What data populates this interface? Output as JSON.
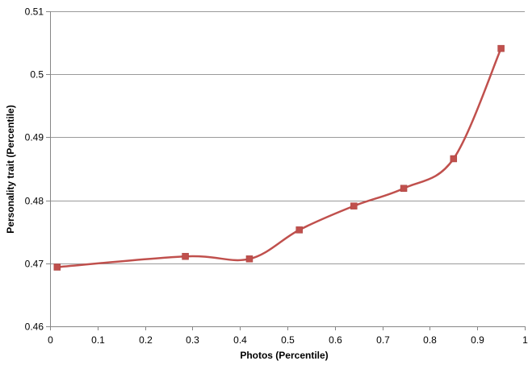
{
  "chart_data": {
    "type": "line",
    "title": "",
    "xlabel": "Photos (Percentile)",
    "ylabel": "Personality trait (Percentile)",
    "xlim": [
      0,
      1
    ],
    "ylim": [
      0.46,
      0.51
    ],
    "xticks": [
      "0",
      "0.1",
      "0.2",
      "0.3",
      "0.4",
      "0.5",
      "0.6",
      "0.7",
      "0.8",
      "0.9",
      "1"
    ],
    "yticks": [
      "0.46",
      "0.47",
      "0.48",
      "0.49",
      "0.5",
      "0.51"
    ],
    "grid": "horizontal",
    "smoothed": true,
    "series": [
      {
        "color": "#c0504d",
        "marker": "square",
        "x": [
          0.015,
          0.285,
          0.42,
          0.525,
          0.64,
          0.745,
          0.85,
          0.95
        ],
        "y": [
          0.4694,
          0.4711,
          0.4707,
          0.4753,
          0.4791,
          0.4819,
          0.4866,
          0.5041
        ]
      }
    ]
  }
}
